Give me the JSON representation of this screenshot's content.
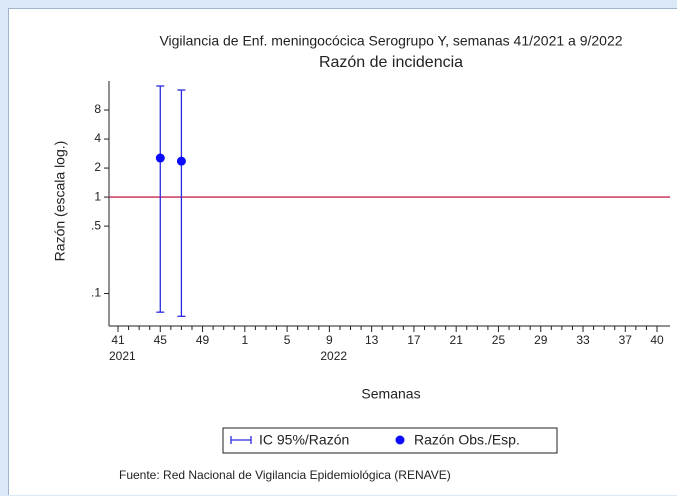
{
  "chart_data": {
    "type": "scatter",
    "title": "Vigilancia de Enf. meningocócica Serogrupo Y, semanas 41/2021 a 9/2022",
    "subtitle": "Razón de incidencia",
    "y_label": "Razón (escala log.)",
    "x_label": "Semanas",
    "source": "Fuente: Red Nacional de Vigilancia Epidemiológica (RENAVE)",
    "categories": [
      "41",
      null,
      null,
      null,
      "45",
      null,
      null,
      null,
      "49",
      null,
      null,
      null,
      "1",
      null,
      null,
      null,
      "5",
      null,
      null,
      null,
      "9",
      null,
      null,
      null,
      "13",
      null,
      null,
      null,
      "17",
      null,
      null,
      null,
      "21",
      null,
      null,
      null,
      "25",
      null,
      null,
      null,
      "29",
      null,
      null,
      null,
      "33",
      null,
      null,
      null,
      "37",
      null,
      null,
      "40"
    ],
    "year_labels": [
      {
        "label": "2021",
        "category_index": 0
      },
      {
        "label": "2022",
        "category_index": 20
      }
    ],
    "series": [
      {
        "name": "Razón Obs./Esp.",
        "color": "#0a0aff",
        "values": [
          null,
          null,
          null,
          null,
          2.54,
          null,
          2.36,
          null,
          null,
          null,
          null,
          null,
          null,
          null,
          null,
          null,
          null,
          null,
          null,
          null,
          null,
          null,
          null,
          null,
          null,
          null,
          null,
          null,
          null,
          null,
          null,
          null,
          null,
          null,
          null,
          null,
          null,
          null,
          null,
          null,
          null,
          null,
          null,
          null,
          null,
          null,
          null,
          null,
          null,
          null,
          null,
          null
        ],
        "error_name": "IC 95%/Razón",
        "error_color": "#2a2ae0",
        "lower": [
          null,
          null,
          null,
          null,
          0.064,
          null,
          0.058,
          null,
          null,
          null,
          null,
          null,
          null,
          null,
          null,
          null,
          null,
          null,
          null,
          null,
          null,
          null,
          null,
          null,
          null,
          null,
          null,
          null,
          null,
          null,
          null,
          null,
          null,
          null,
          null,
          null,
          null,
          null,
          null,
          null,
          null,
          null,
          null,
          null,
          null,
          null,
          null,
          null,
          null,
          null,
          null,
          null
        ],
        "upper": [
          null,
          null,
          null,
          null,
          14.2,
          null,
          12.9,
          null,
          null,
          null,
          null,
          null,
          null,
          null,
          null,
          null,
          null,
          null,
          null,
          null,
          null,
          null,
          null,
          null,
          null,
          null,
          null,
          null,
          null,
          null,
          null,
          null,
          null,
          null,
          null,
          null,
          null,
          null,
          null,
          null,
          null,
          null,
          null,
          null,
          null,
          null,
          null,
          null,
          null,
          null,
          null,
          null
        ]
      }
    ],
    "reference_line": 1,
    "reference_color": "#c8264f",
    "ylog": true,
    "ylim": [
      0.046,
      16
    ],
    "yticks": [
      {
        "value": 0.1,
        "label": ".1"
      },
      {
        "value": 0.5,
        "label": ".5"
      },
      1,
      2,
      4,
      8
    ]
  }
}
